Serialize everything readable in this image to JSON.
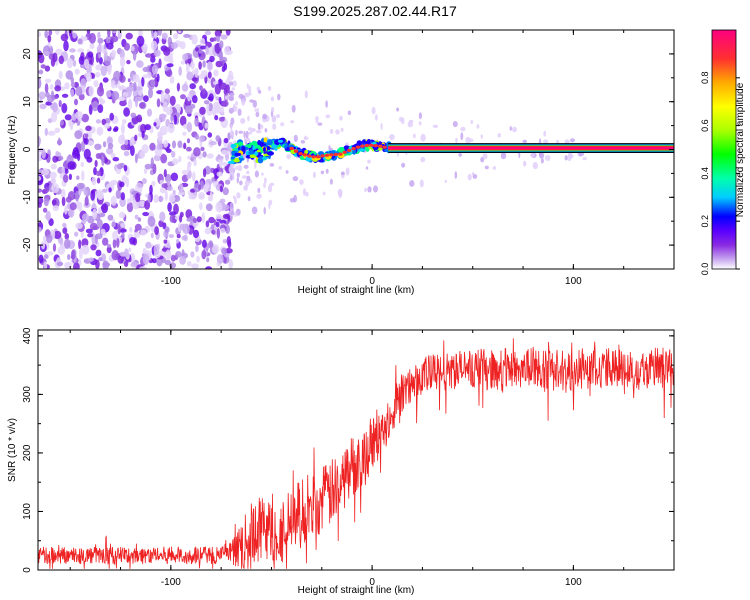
{
  "page_title": "S199.2025.287.02.44.R17",
  "chart_data": [
    {
      "id": "spectrogram",
      "type": "heatmap",
      "title": "S199.2025.287.02.44.R17",
      "xlabel": "Height of straight line (km)",
      "ylabel": "Frequency (Hz)",
      "xlim": [
        -166,
        150
      ],
      "ylim": [
        -25,
        25
      ],
      "xticks": [
        -100,
        0,
        100
      ],
      "yticks": [
        -20,
        -10,
        0,
        10,
        20
      ],
      "grid": false,
      "noise_region_x": [
        -166,
        -70
      ],
      "transition_region_x": [
        -70,
        10
      ],
      "carrier_frequency_hz": 0,
      "carrier_track": {
        "x": [
          -68,
          -62,
          -56,
          -50,
          -45,
          -40,
          -36,
          -32,
          -28,
          -24,
          -20,
          -16,
          -12,
          -8,
          -4,
          0,
          4,
          8,
          150
        ],
        "freq": [
          -1.0,
          0.5,
          -0.5,
          0.8,
          1.5,
          0.2,
          -0.8,
          -1.3,
          -1.6,
          -1.3,
          -1.1,
          -1.0,
          -0.3,
          0.4,
          0.8,
          0.9,
          0.7,
          0.3,
          0.3
        ]
      },
      "colorbar": {
        "label": "Normalized spectral amplitude",
        "range": [
          0,
          1
        ],
        "ticks": [
          0.0,
          0.2,
          0.4,
          0.6,
          0.8
        ],
        "tick_labels": [
          "0.0",
          "0.2",
          "0.4",
          "0.6",
          "0.8"
        ],
        "colors": [
          "#ffffff",
          "#c8a8f0",
          "#8a2be2",
          "#5a00ff",
          "#0000ff",
          "#00ccff",
          "#00ffaa",
          "#00ff00",
          "#aaff00",
          "#ffff00",
          "#ffaa00",
          "#ff3030",
          "#ff0080"
        ]
      }
    },
    {
      "id": "snr",
      "type": "line",
      "xlabel": "Height of straight line (km)",
      "ylabel": "SNR (10 * v/v)",
      "xlim": [
        -166,
        150
      ],
      "ylim": [
        0,
        410
      ],
      "xticks": [
        -100,
        0,
        100
      ],
      "yticks": [
        0,
        100,
        200,
        300,
        400
      ],
      "series": [
        {
          "name": "SNR",
          "color": "#ee2222",
          "x": [
            -166,
            -140,
            -120,
            -100,
            -80,
            -70,
            -66,
            -60,
            -56,
            -50,
            -44,
            -40,
            -36,
            -30,
            -24,
            -18,
            -12,
            -6,
            0,
            6,
            12,
            18,
            24,
            30,
            40,
            50,
            60,
            70,
            80,
            90,
            100,
            110,
            120,
            130,
            140,
            150
          ],
          "y": [
            25,
            25,
            25,
            25,
            25,
            28,
            40,
            55,
            70,
            65,
            70,
            85,
            95,
            110,
            120,
            140,
            170,
            190,
            210,
            245,
            285,
            310,
            330,
            335,
            340,
            345,
            342,
            345,
            345,
            345,
            340,
            345,
            345,
            342,
            345,
            345
          ],
          "noise_amplitude": [
            15,
            15,
            15,
            15,
            15,
            20,
            35,
            60,
            60,
            55,
            55,
            60,
            60,
            60,
            60,
            55,
            55,
            50,
            45,
            40,
            35,
            35,
            35,
            35,
            35,
            35,
            35,
            35,
            35,
            35,
            35,
            35,
            35,
            35,
            35,
            35
          ]
        }
      ]
    }
  ]
}
